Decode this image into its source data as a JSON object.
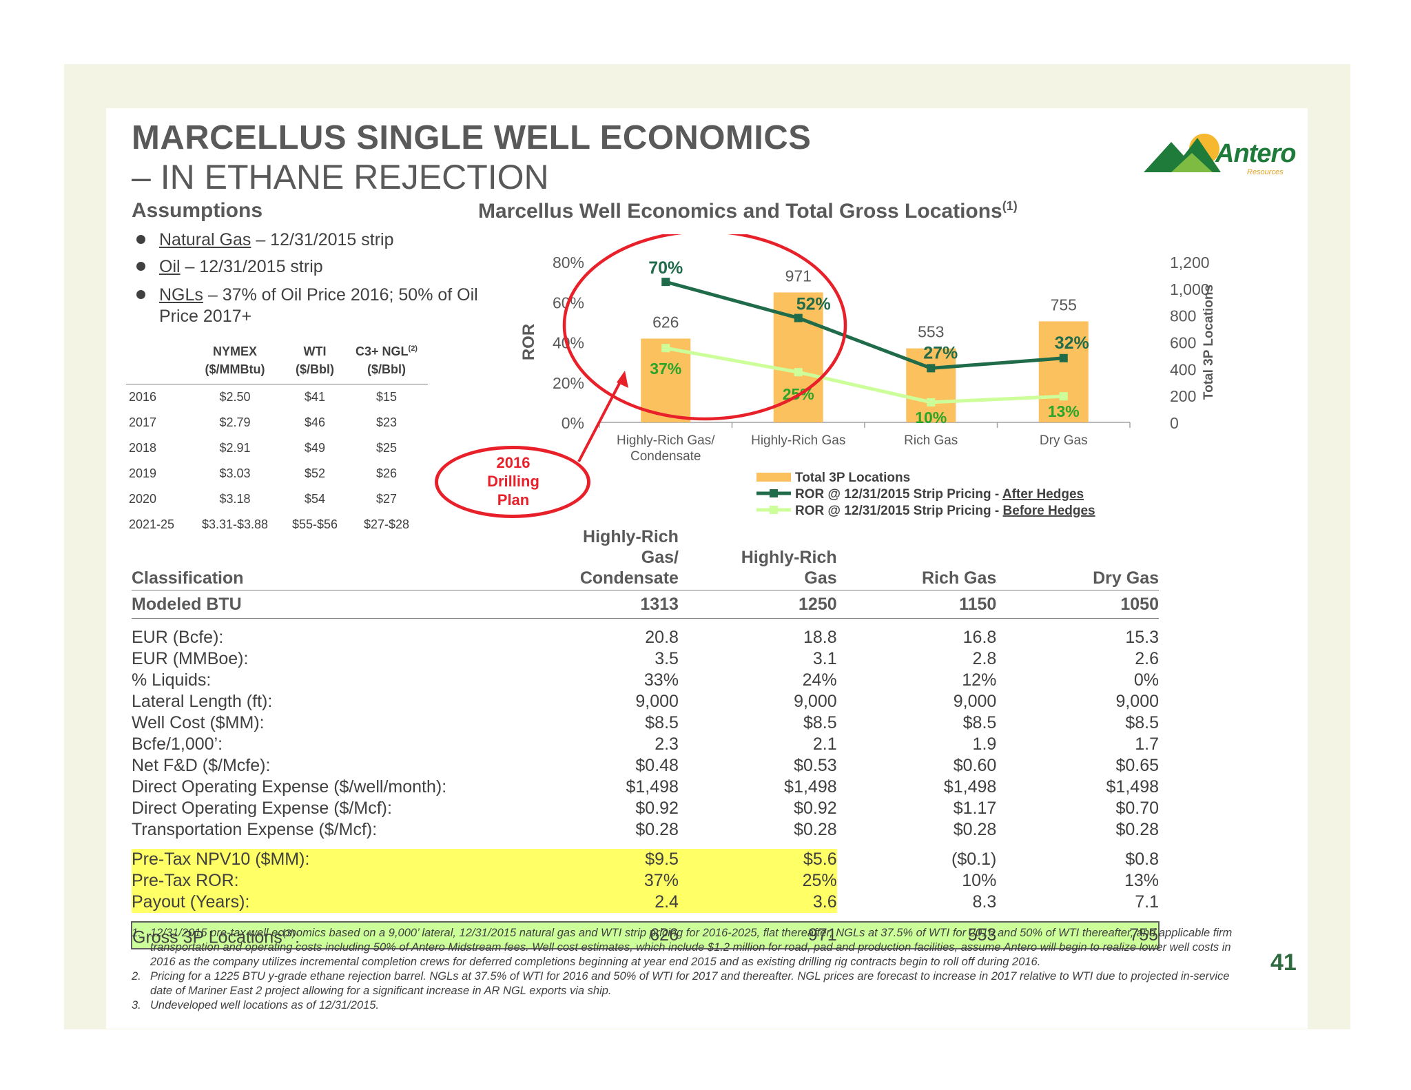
{
  "slide": {
    "title_line1": "MARCELLUS SINGLE WELL ECONOMICS",
    "title_line2": "– IN ETHANE REJECTION",
    "logo_text": "Antero",
    "logo_sub": "Resources",
    "page_number": "41",
    "colors": {
      "logo_green": "#1e7b3a",
      "accent_red": "#e8202a",
      "bar": "#fbc15e",
      "after_hedges": "#1f6b4a",
      "before_hedges": "#ccff99",
      "highlight_yellow": "#ffff66",
      "highlight_green": "#ccff99"
    }
  },
  "assumptions": {
    "heading": "Assumptions",
    "bullets": [
      {
        "label": "Natural Gas",
        "rest": " – 12/31/2015 strip"
      },
      {
        "label": "Oil",
        "rest": " – 12/31/2015 strip"
      },
      {
        "label": "NGLs",
        "rest": " – 37% of Oil Price 2016; 50% of Oil Price 2017+"
      }
    ],
    "table": {
      "columns": [
        {
          "line1": "NYMEX",
          "line2": "($/MMBtu)"
        },
        {
          "line1": "WTI",
          "line2": "($/Bbl)"
        },
        {
          "line1": "C3+ NGL",
          "sup": "(2)",
          "line2": "($/Bbl)"
        }
      ],
      "rows": [
        [
          "2016",
          "$2.50",
          "$41",
          "$15"
        ],
        [
          "2017",
          "$2.79",
          "$46",
          "$23"
        ],
        [
          "2018",
          "$2.91",
          "$49",
          "$25"
        ],
        [
          "2019",
          "$3.03",
          "$52",
          "$26"
        ],
        [
          "2020",
          "$3.18",
          "$54",
          "$27"
        ],
        [
          "2021-25",
          "$3.31-$3.88",
          "$55-$56",
          "$27-$28"
        ]
      ]
    }
  },
  "drilling_plan": {
    "line1": "2016",
    "line2": "Drilling",
    "line3": "Plan"
  },
  "chart_data": {
    "type": "bar",
    "title": "Marcellus Well Economics and Total Gross Locations",
    "title_sup": "(1)",
    "categories": [
      "Highly-Rich Gas/ Condensate",
      "Highly-Rich Gas",
      "Rich Gas",
      "Dry Gas"
    ],
    "category_lines": [
      [
        "Highly-Rich Gas/",
        "Condensate"
      ],
      [
        "Highly-Rich Gas"
      ],
      [
        "Rich Gas"
      ],
      [
        "Dry Gas"
      ]
    ],
    "ylabel": "ROR",
    "y2label": "Total 3P Locations",
    "ylim": [
      0,
      0.8
    ],
    "y_ticks": [
      "0%",
      "20%",
      "40%",
      "60%",
      "80%"
    ],
    "y2lim": [
      0,
      1200
    ],
    "y2_ticks": [
      "0",
      "200",
      "400",
      "600",
      "800",
      "1,000",
      "1,200"
    ],
    "series": [
      {
        "name": "Total 3P Locations",
        "kind": "bar",
        "axis": "right",
        "values": [
          626,
          971,
          553,
          755
        ],
        "labels": [
          "626",
          "971",
          "553",
          "755"
        ]
      },
      {
        "name": "ROR @ 12/31/2015 Strip Pricing - After Hedges",
        "legend_prefix": "ROR @ 12/31/2015 Strip Pricing - ",
        "legend_underlined": "After Hedges",
        "kind": "line",
        "axis": "left",
        "values": [
          0.7,
          0.52,
          0.27,
          0.32
        ],
        "labels": [
          "70%",
          "52%",
          "27%",
          "32%"
        ]
      },
      {
        "name": "ROR @ 12/31/2015 Strip Pricing - Before Hedges",
        "legend_prefix": "ROR @ 12/31/2015 Strip Pricing - ",
        "legend_underlined": "Before Hedges",
        "kind": "line",
        "axis": "left",
        "values": [
          0.37,
          0.25,
          0.1,
          0.13
        ],
        "labels": [
          "37%",
          "25%",
          "10%",
          "13%"
        ]
      }
    ]
  },
  "economics": {
    "header_classification": "Classification",
    "columns": [
      {
        "line1": "Highly-Rich Gas/",
        "line2": "Condensate"
      },
      {
        "line1": "Highly-Rich",
        "line2": "Gas"
      },
      {
        "line1": "",
        "line2": "Rich Gas"
      },
      {
        "line1": "",
        "line2": "Dry Gas"
      }
    ],
    "btu_row": {
      "label": "Modeled BTU",
      "values": [
        "1313",
        "1250",
        "1150",
        "1050"
      ]
    },
    "rows": [
      {
        "label": "EUR (Bcfe):",
        "values": [
          "20.8",
          "18.8",
          "16.8",
          "15.3"
        ]
      },
      {
        "label": "EUR (MMBoe):",
        "values": [
          "3.5",
          "3.1",
          "2.8",
          "2.6"
        ]
      },
      {
        "label": " % Liquids:",
        "values": [
          "33%",
          "24%",
          "12%",
          "0%"
        ]
      },
      {
        "label": "Lateral Length (ft):",
        "values": [
          "9,000",
          "9,000",
          "9,000",
          "9,000"
        ]
      },
      {
        "label": "Well Cost ($MM):",
        "values": [
          "$8.5",
          "$8.5",
          "$8.5",
          "$8.5"
        ]
      },
      {
        "label": "Bcfe/1,000’:",
        "values": [
          "2.3",
          "2.1",
          "1.9",
          "1.7"
        ]
      },
      {
        "label": "Net F&D ($/Mcfe):",
        "values": [
          "$0.48",
          "$0.53",
          "$0.60",
          "$0.65"
        ]
      },
      {
        "label": "Direct Operating Expense ($/well/month):",
        "values": [
          "$1,498",
          "$1,498",
          "$1,498",
          "$1,498"
        ]
      },
      {
        "label": "Direct Operating Expense ($/Mcf):",
        "values": [
          "$0.92",
          "$0.92",
          "$1.17",
          "$0.70"
        ]
      },
      {
        "label": "Transportation Expense ($/Mcf):",
        "values": [
          "$0.28",
          "$0.28",
          "$0.28",
          "$0.28"
        ]
      }
    ],
    "highlight_rows": [
      {
        "label": "Pre-Tax NPV10 ($MM):",
        "values": [
          "$9.5",
          "$5.6",
          "($0.1)",
          "$0.8"
        ]
      },
      {
        "label": "Pre-Tax ROR:",
        "values": [
          "37%",
          "25%",
          "10%",
          "13%"
        ]
      },
      {
        "label": "Payout (Years):",
        "values": [
          "2.4",
          "3.6",
          "8.3",
          "7.1"
        ]
      }
    ],
    "gross_row": {
      "label": "Gross 3P Locations",
      "sup": "(3)",
      "suffix": ":",
      "values": [
        "626",
        "971",
        "553",
        "755"
      ]
    }
  },
  "footnotes": [
    {
      "num": "1.",
      "text": "12/31/2015 pre-tax well economics based on a 9,000’ lateral, 12/31/2015 natural gas and WTI strip pricing for 2016-2025, flat thereafter, NGLs at 37.5% of WTI for 2016 and 50% of WTI thereafter, and applicable firm transportation and operating costs including 50% of Antero Midstream fees.  Well cost estimates, which include $1.2 million for road, pad and production facilities, assume Antero will begin to realize lower well costs in 2016 as the company utilizes incremental completion crews for deferred completions beginning at year end 2015 and as existing drilling rig contracts begin to roll off during 2016."
    },
    {
      "num": "2.",
      "text": "Pricing for a 1225 BTU y-grade ethane rejection barrel.  NGLs at 37.5% of WTI for 2016 and 50% of WTI for 2017 and thereafter.  NGL prices are forecast to increase in 2017 relative to WTI due to projected in-service date of Mariner East 2 project allowing for a significant increase in AR NGL exports via ship."
    },
    {
      "num": "3.",
      "text": "Undeveloped well locations as of 12/31/2015."
    }
  ]
}
